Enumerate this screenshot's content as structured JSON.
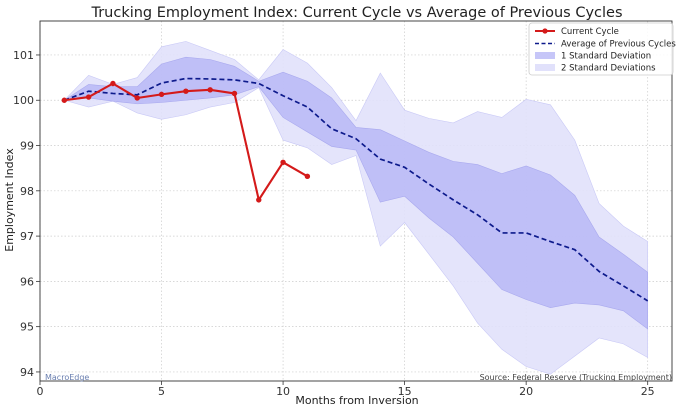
{
  "chart_data": {
    "type": "line",
    "title": "Trucking Employment Index: Current Cycle vs Average of Previous Cycles",
    "xlabel": "Months from Inversion",
    "ylabel": "Employment Index",
    "xlim": [
      0,
      26
    ],
    "ylim": [
      93.8,
      101.75
    ],
    "xticks": [
      0,
      5,
      10,
      15,
      20,
      25
    ],
    "yticks": [
      94,
      95,
      96,
      97,
      98,
      99,
      100,
      101
    ],
    "grid": true,
    "legend_position": "top-right",
    "colors": {
      "current": "#d41a1a",
      "average": "#0d1a8c",
      "band1": "#b3b3f5",
      "band2": "#e1e1fb",
      "grid": "#cccccc",
      "watermark": "#6a7fb0",
      "source": "#444444"
    },
    "series": [
      {
        "name": "Current Cycle",
        "style": "solid-marker",
        "x": [
          1,
          2,
          3,
          4,
          5,
          6,
          7,
          8,
          9,
          10,
          11
        ],
        "values": [
          100.0,
          100.07,
          100.37,
          100.05,
          100.13,
          100.2,
          100.23,
          100.15,
          97.8,
          98.63,
          98.32
        ]
      },
      {
        "name": "Average of Previous Cycles",
        "style": "dashed",
        "x": [
          1,
          2,
          3,
          4,
          5,
          6,
          7,
          8,
          9,
          10,
          11,
          12,
          13,
          14,
          15,
          16,
          17,
          18,
          19,
          20,
          21,
          22,
          23,
          24,
          25
        ],
        "values": [
          100.0,
          100.2,
          100.15,
          100.12,
          100.38,
          100.48,
          100.47,
          100.45,
          100.37,
          100.1,
          99.85,
          99.37,
          99.15,
          98.7,
          98.52,
          98.15,
          97.8,
          97.47,
          97.07,
          97.07,
          96.88,
          96.7,
          96.22,
          95.9,
          95.57
        ]
      }
    ],
    "bands": [
      {
        "name": "1 Standard Deviation",
        "x": [
          1,
          2,
          3,
          4,
          5,
          6,
          7,
          8,
          9,
          10,
          11,
          12,
          13,
          14,
          15,
          16,
          17,
          18,
          19,
          20,
          21,
          22,
          23,
          24,
          25
        ],
        "upper": [
          100.0,
          100.35,
          100.3,
          100.3,
          100.8,
          100.95,
          100.9,
          100.75,
          100.42,
          100.62,
          100.42,
          100.05,
          99.4,
          99.35,
          99.1,
          98.85,
          98.65,
          98.58,
          98.38,
          98.55,
          98.35,
          97.9,
          96.98,
          96.6,
          96.2
        ],
        "lower": [
          100.0,
          100.05,
          99.98,
          99.92,
          99.95,
          100.0,
          100.05,
          100.12,
          100.3,
          99.62,
          99.3,
          98.98,
          98.9,
          97.75,
          97.88,
          97.4,
          96.98,
          96.4,
          95.82,
          95.6,
          95.42,
          95.52,
          95.48,
          95.35,
          94.95
        ]
      },
      {
        "name": "2 Standard Deviations",
        "x": [
          1,
          2,
          3,
          4,
          5,
          6,
          7,
          8,
          9,
          10,
          11,
          12,
          13,
          14,
          15,
          16,
          17,
          18,
          19,
          20,
          21,
          22,
          23,
          24,
          25
        ],
        "upper": [
          100.0,
          100.55,
          100.35,
          100.5,
          101.18,
          101.3,
          101.1,
          100.9,
          100.45,
          101.12,
          100.82,
          100.28,
          99.55,
          100.6,
          99.78,
          99.6,
          99.5,
          99.75,
          99.62,
          100.02,
          99.9,
          99.12,
          97.72,
          97.22,
          96.88
        ],
        "lower": [
          100.0,
          99.85,
          99.98,
          99.72,
          99.58,
          99.68,
          99.85,
          99.95,
          100.28,
          99.12,
          98.95,
          98.58,
          98.78,
          96.78,
          97.3,
          96.6,
          95.9,
          95.08,
          94.5,
          94.12,
          93.95,
          94.35,
          94.75,
          94.62,
          94.32
        ]
      }
    ],
    "annotations": {
      "watermark": "MacroEdge",
      "source": "Source: Federal Reserve (Trucking Employment)"
    }
  }
}
